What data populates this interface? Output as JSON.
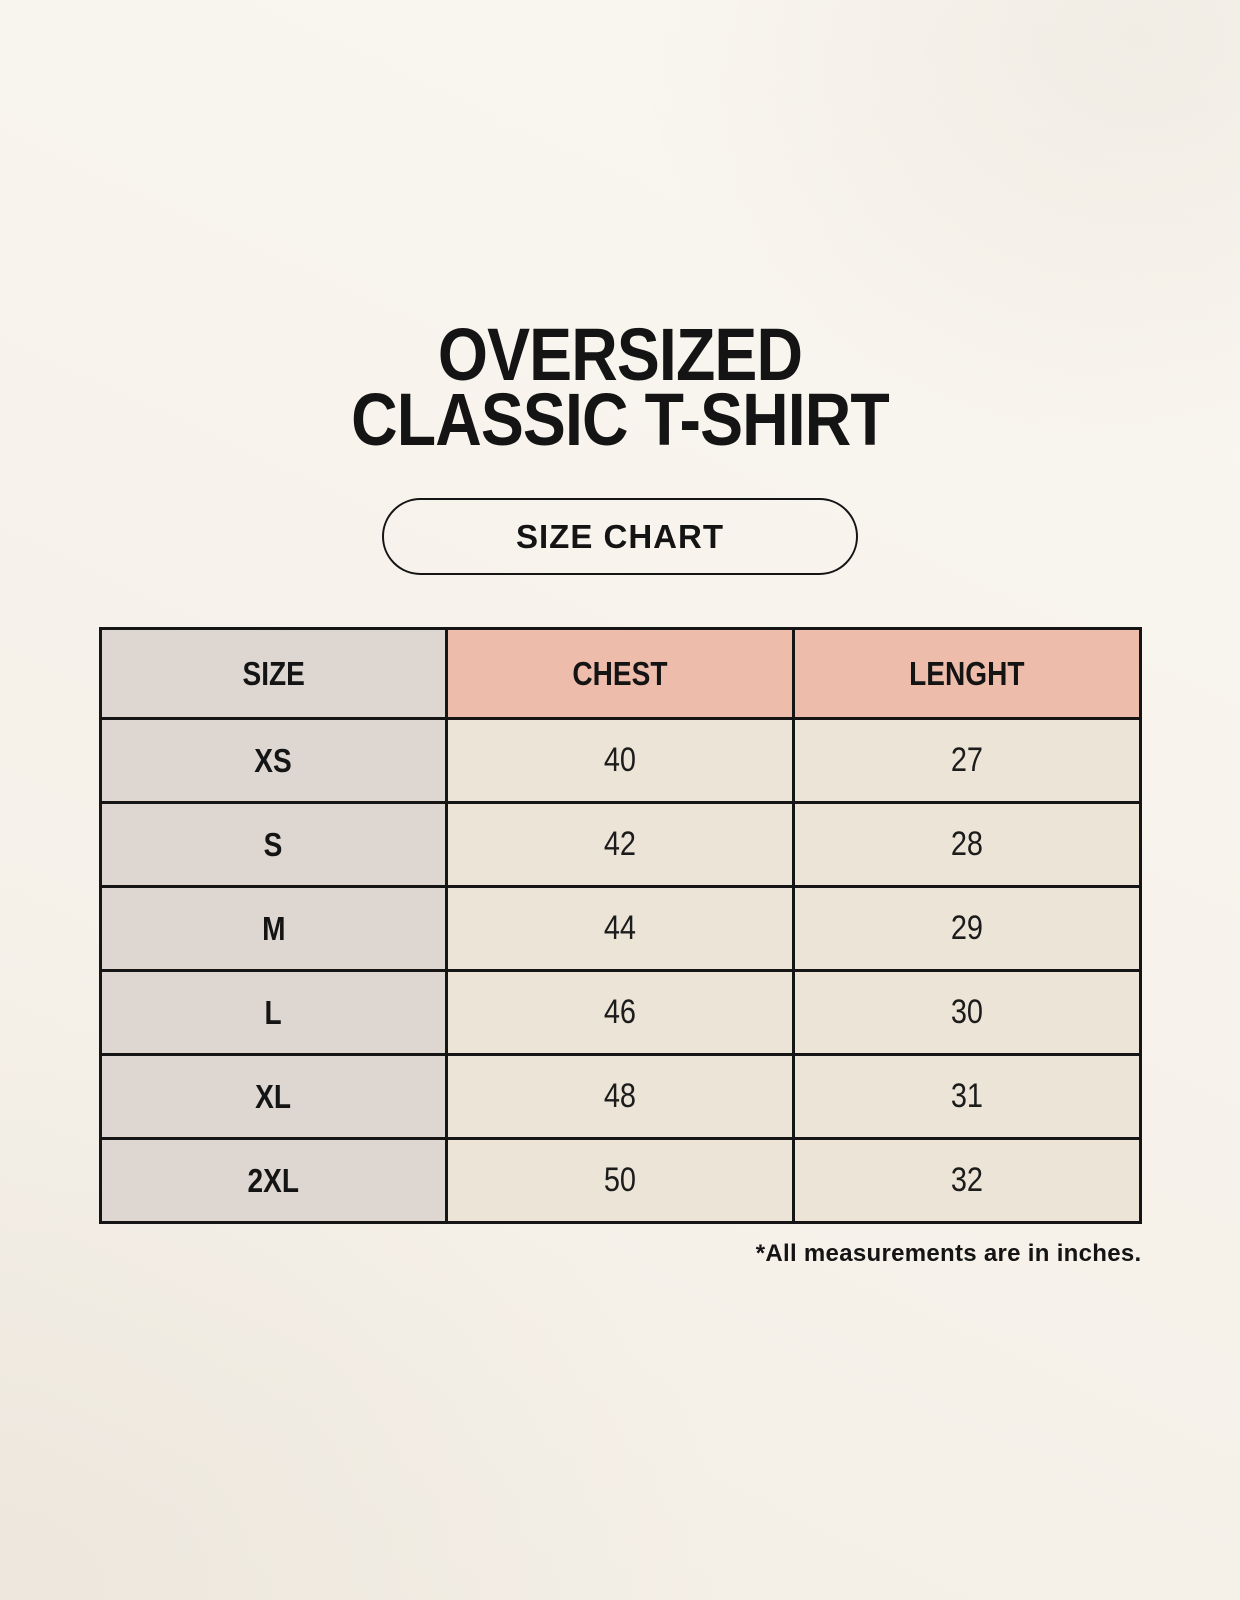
{
  "page": {
    "title_lines": [
      "OVERSIZED",
      "CLASSIC T-SHIRT"
    ],
    "badge_label": "SIZE CHART",
    "footnote": "*All measurements are in inches."
  },
  "chart_data": {
    "type": "table",
    "title": "OVERSIZED CLASSIC T-SHIRT",
    "subtitle": "SIZE CHART",
    "columns": [
      "SIZE",
      "CHEST",
      "LENGHT"
    ],
    "rows": [
      {
        "size": "XS",
        "chest": 40,
        "length": 27
      },
      {
        "size": "S",
        "chest": 42,
        "length": 28
      },
      {
        "size": "M",
        "chest": 44,
        "length": 29
      },
      {
        "size": "L",
        "chest": 46,
        "length": 30
      },
      {
        "size": "XL",
        "chest": 48,
        "length": 31
      },
      {
        "size": "2XL",
        "chest": 50,
        "length": 32
      }
    ],
    "note": "*All measurements are in inches.",
    "units": "inches"
  },
  "colors": {
    "background": "#f7f3ec",
    "header_accent_pink": "#eebcab",
    "size_column_gray": "#ddd6d1",
    "cell_cream": "#ebe4d7",
    "border": "#151515",
    "text": "#161616"
  }
}
